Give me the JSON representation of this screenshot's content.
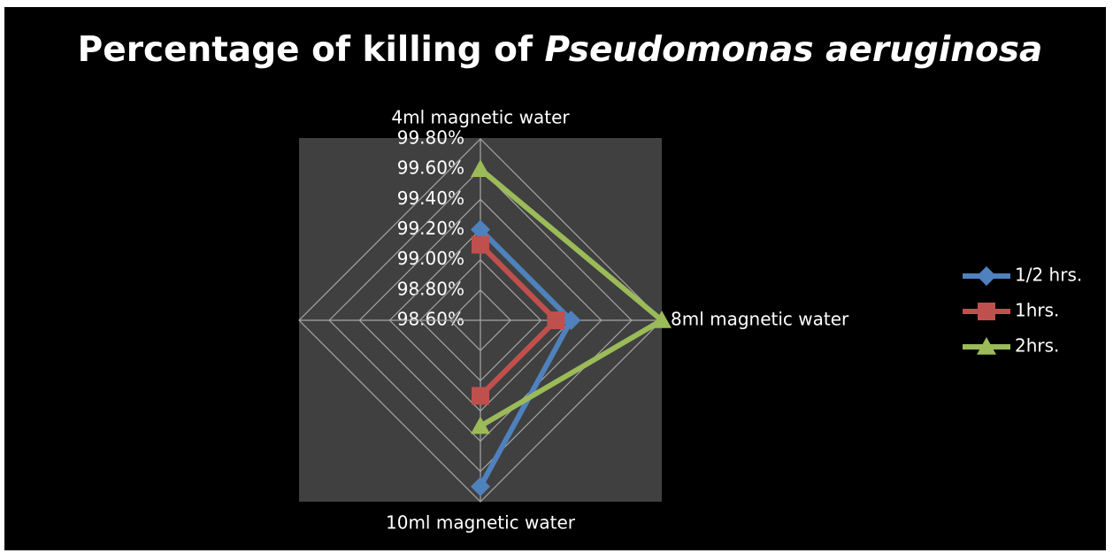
{
  "chart_data": {
    "type": "radar",
    "title": [
      "Percentage of killing of",
      "Pseudomonas aeruginosa"
    ],
    "categories": [
      "4ml magnetic water",
      "8ml magnetic water",
      "10ml magnetic water",
      null
    ],
    "rlim": [
      98.6,
      99.8
    ],
    "rticks": [
      {
        "value": 98.6,
        "label": "98.60%"
      },
      {
        "value": 98.8,
        "label": "98.80%"
      },
      {
        "value": 99.0,
        "label": "99.00%"
      },
      {
        "value": 99.2,
        "label": "99.20%"
      },
      {
        "value": 99.4,
        "label": "99.40%"
      },
      {
        "value": 99.6,
        "label": "99.60%"
      },
      {
        "value": 99.8,
        "label": "99.80%"
      }
    ],
    "grid": true,
    "legend": "right",
    "series": [
      {
        "name": "1/2 hrs.",
        "color": "#4f81bd",
        "marker": "diamond",
        "values": [
          99.2,
          99.2,
          99.7,
          null
        ]
      },
      {
        "name": "1hrs.",
        "color": "#c0504d",
        "marker": "square",
        "values": [
          99.1,
          99.1,
          99.1,
          null
        ]
      },
      {
        "name": "2hrs.",
        "color": "#9bbb59",
        "marker": "triangle",
        "values": [
          99.6,
          99.8,
          99.3,
          null
        ]
      }
    ]
  }
}
